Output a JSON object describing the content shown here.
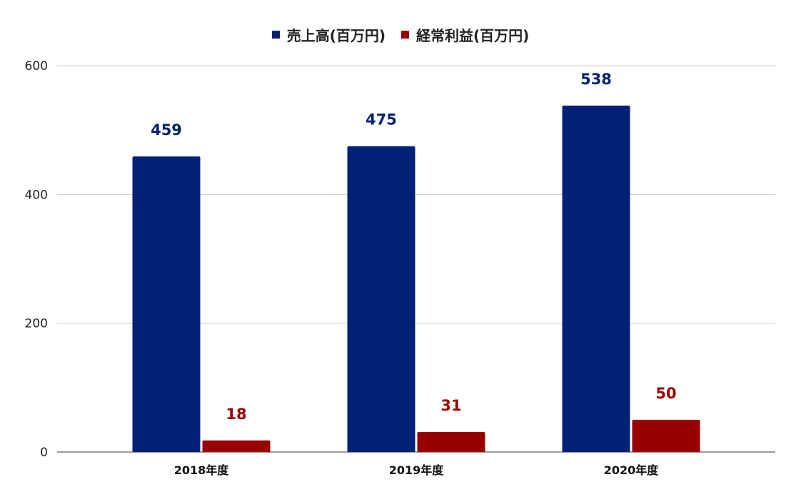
{
  "chart_data": {
    "type": "bar",
    "categories": [
      "2018年度",
      "2019年度",
      "2020年度"
    ],
    "series": [
      {
        "name": "売上高(百万円)",
        "values": [
          459,
          475,
          538
        ],
        "color": "#002175"
      },
      {
        "name": "経常利益(百万円)",
        "values": [
          18,
          31,
          50
        ],
        "color": "#990000"
      }
    ],
    "title": "",
    "xlabel": "",
    "ylabel": "",
    "ylim": [
      0,
      600
    ],
    "yticks": [
      "0",
      "200",
      "400",
      "600"
    ],
    "grid": true,
    "legend_position": "top",
    "data_labels": true
  }
}
